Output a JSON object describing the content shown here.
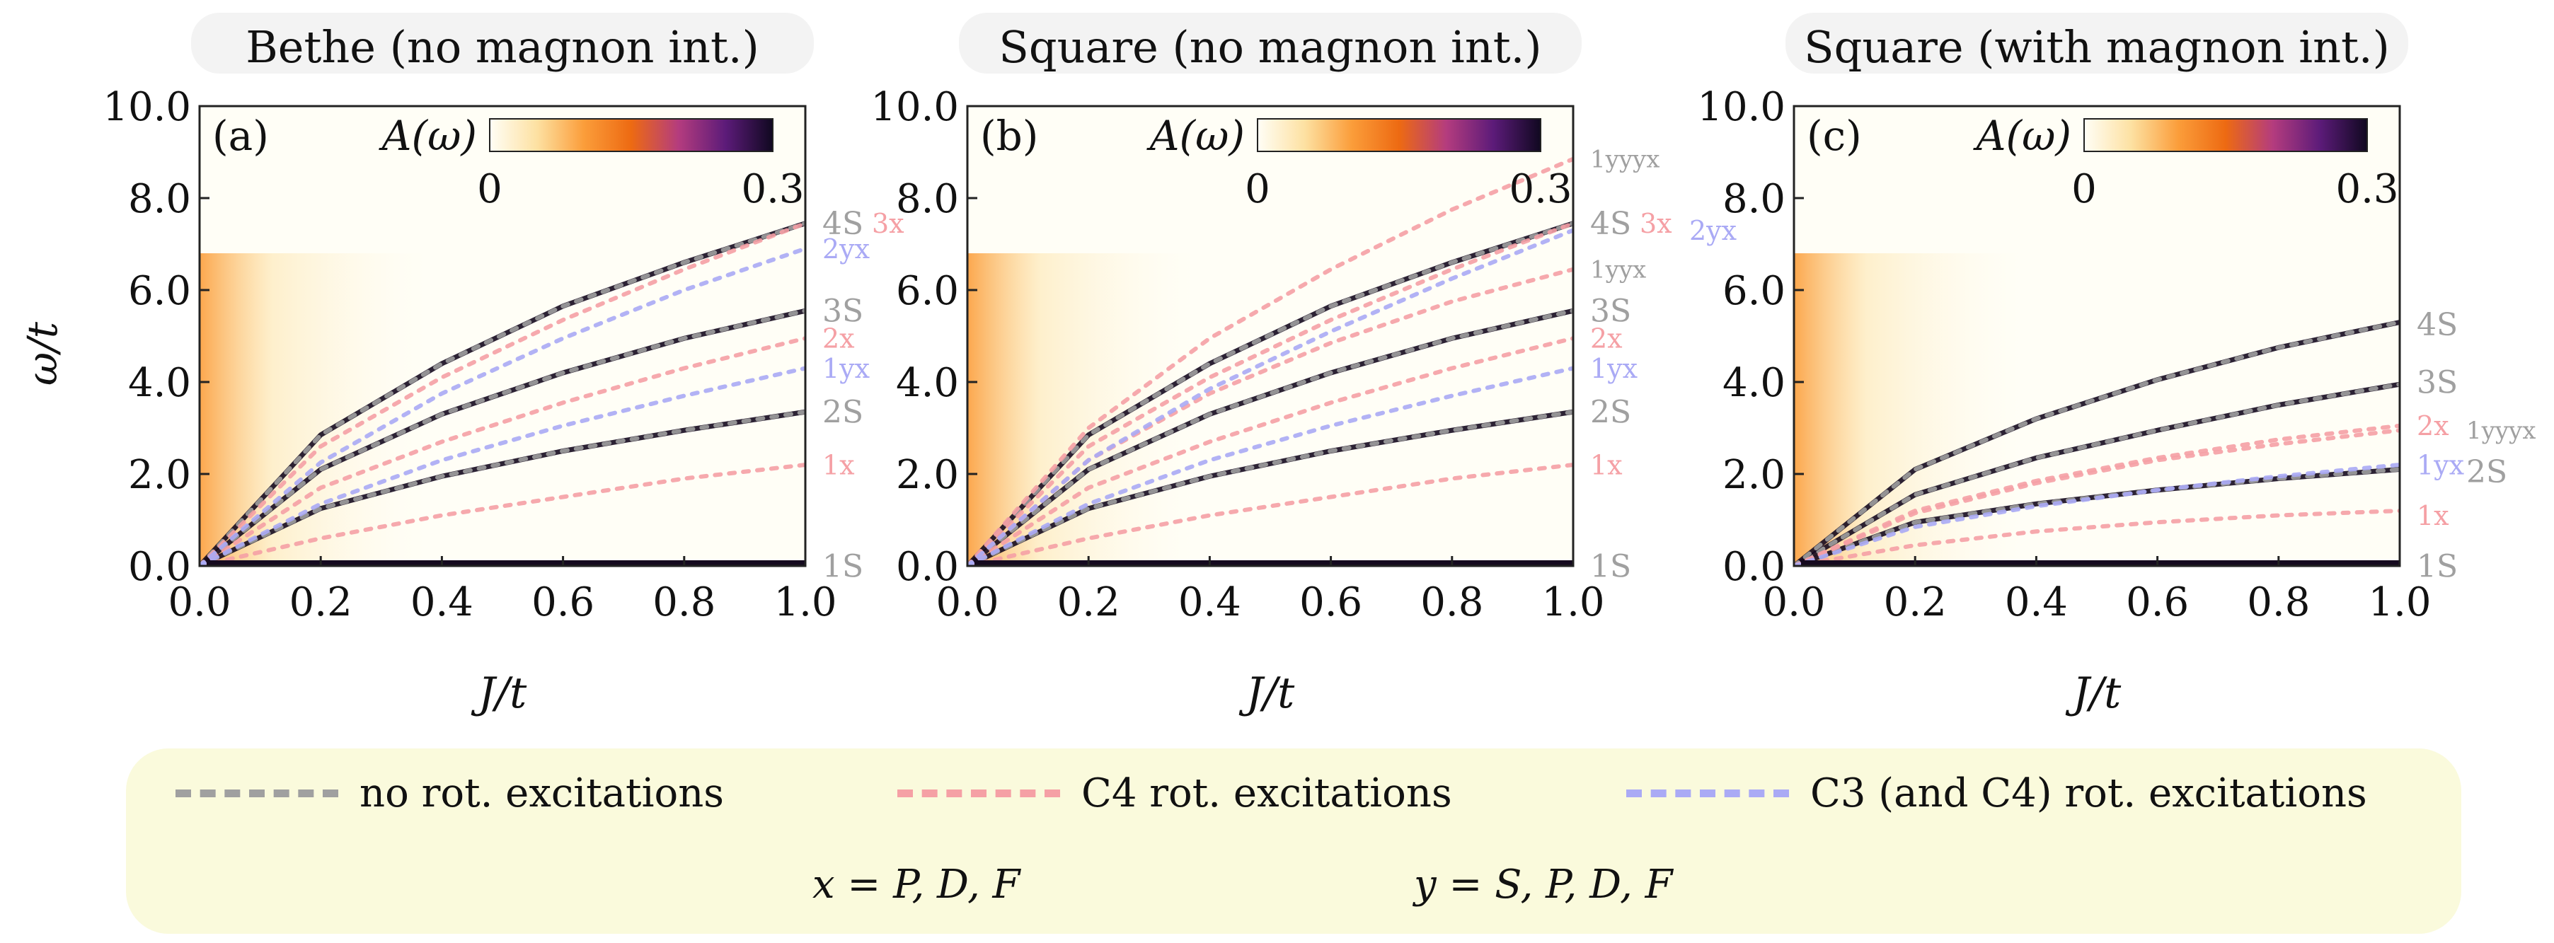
{
  "colors": {
    "no_rot": "#a0a0a0",
    "c4_rot": "#f5a0a5",
    "c3_rot": "#aaaaf5",
    "colormap": [
      "#fffef6",
      "#fde1a2",
      "#fb9d3a",
      "#ed6a12",
      "#b43c7e",
      "#5c1b79",
      "#100820"
    ]
  },
  "y_axis_label": "ω/t",
  "legend": {
    "items": [
      {
        "label": "no rot. excitations",
        "color": "#a0a0a0"
      },
      {
        "label": "C4 rot. excitations",
        "color": "#f5a0a5"
      },
      {
        "label": "C3 (and C4) rot. excitations",
        "color": "#aaaaf5"
      }
    ],
    "x_def": "x = P, D, F",
    "y_def": "y = S, P, D, F"
  },
  "chart_data": [
    {
      "type": "heatmap",
      "panel": "(a)",
      "title": "Bethe (no magnon int.)",
      "xlabel": "J/t",
      "ylabel": "ω/t",
      "xlim": [
        0.0,
        1.0
      ],
      "ylim": [
        0.0,
        10.0
      ],
      "x_ticks": [
        "0.0",
        "0.2",
        "0.4",
        "0.6",
        "0.8",
        "1.0"
      ],
      "y_ticks": [
        "0.0",
        "2.0",
        "4.0",
        "6.0",
        "8.0",
        "10.0"
      ],
      "colorbar": {
        "label": "A(ω)",
        "min": "0",
        "max": "0.3"
      },
      "labels": [
        {
          "text": "4S",
          "y": 7.45,
          "kind": "no_rot"
        },
        {
          "text": "3x",
          "y": 7.45,
          "kind": "c4_rot"
        },
        {
          "text": "2yx",
          "y": 6.9,
          "kind": "c3_rot"
        },
        {
          "text": "3S",
          "y": 5.55,
          "kind": "no_rot"
        },
        {
          "text": "2x",
          "y": 4.95,
          "kind": "c4_rot"
        },
        {
          "text": "1yx",
          "y": 4.3,
          "kind": "c3_rot"
        },
        {
          "text": "2S",
          "y": 3.35,
          "kind": "no_rot"
        },
        {
          "text": "1x",
          "y": 2.2,
          "kind": "c4_rot"
        },
        {
          "text": "1S",
          "y": 0.0,
          "kind": "no_rot"
        }
      ],
      "dashed_lines": [
        {
          "kind": "no_rot",
          "x": [
            0,
            0.2,
            0.4,
            0.6,
            0.8,
            1.0
          ],
          "y": [
            0.0,
            1.25,
            1.95,
            2.5,
            2.95,
            3.35
          ]
        },
        {
          "kind": "no_rot",
          "x": [
            0,
            0.2,
            0.4,
            0.6,
            0.8,
            1.0
          ],
          "y": [
            0.0,
            2.1,
            3.3,
            4.2,
            4.95,
            5.55
          ]
        },
        {
          "kind": "no_rot",
          "x": [
            0,
            0.2,
            0.4,
            0.6,
            0.8,
            1.0
          ],
          "y": [
            0.0,
            2.85,
            4.4,
            5.65,
            6.6,
            7.45
          ]
        },
        {
          "kind": "c4_rot",
          "x": [
            0,
            0.2,
            0.4,
            0.6,
            0.8,
            1.0
          ],
          "y": [
            0.0,
            0.6,
            1.1,
            1.5,
            1.9,
            2.2
          ]
        },
        {
          "kind": "c4_rot",
          "x": [
            0,
            0.2,
            0.4,
            0.6,
            0.8,
            1.0
          ],
          "y": [
            0.0,
            1.7,
            2.7,
            3.55,
            4.3,
            4.95
          ]
        },
        {
          "kind": "c4_rot",
          "x": [
            0,
            0.2,
            0.4,
            0.6,
            0.8,
            1.0
          ],
          "y": [
            0.0,
            2.6,
            4.1,
            5.35,
            6.45,
            7.45
          ]
        },
        {
          "kind": "c3_rot",
          "x": [
            0,
            0.2,
            0.4,
            0.6,
            0.8,
            1.0
          ],
          "y": [
            0.0,
            1.35,
            2.3,
            3.05,
            3.7,
            4.3
          ]
        },
        {
          "kind": "c3_rot",
          "x": [
            0,
            0.2,
            0.4,
            0.6,
            0.8,
            1.0
          ],
          "y": [
            0.0,
            2.25,
            3.75,
            4.95,
            6.0,
            6.9
          ]
        }
      ]
    },
    {
      "type": "heatmap",
      "panel": "(b)",
      "title": "Square (no magnon int.)",
      "xlabel": "J/t",
      "ylabel": "ω/t",
      "xlim": [
        0.0,
        1.0
      ],
      "ylim": [
        0.0,
        10.0
      ],
      "x_ticks": [
        "0.0",
        "0.2",
        "0.4",
        "0.6",
        "0.8",
        "1.0"
      ],
      "y_ticks": [
        "0.0",
        "2.0",
        "4.0",
        "6.0",
        "8.0",
        "10.0"
      ],
      "colorbar": {
        "label": "A(ω)",
        "min": "0",
        "max": "0.3"
      },
      "labels": [
        {
          "text": "1yyyx",
          "y": 8.85,
          "kind": "no_rot"
        },
        {
          "text": "4S",
          "y": 7.45,
          "kind": "no_rot"
        },
        {
          "text": "3x",
          "y": 7.45,
          "kind": "c4_rot"
        },
        {
          "text": "2yx",
          "y": 7.3,
          "kind": "c3_rot"
        },
        {
          "text": "1yyx",
          "y": 6.45,
          "kind": "no_rot"
        },
        {
          "text": "3S",
          "y": 5.55,
          "kind": "no_rot"
        },
        {
          "text": "2x",
          "y": 4.95,
          "kind": "c4_rot"
        },
        {
          "text": "1yx",
          "y": 4.3,
          "kind": "c3_rot"
        },
        {
          "text": "2S",
          "y": 3.35,
          "kind": "no_rot"
        },
        {
          "text": "1x",
          "y": 2.2,
          "kind": "c4_rot"
        },
        {
          "text": "1S",
          "y": 0.0,
          "kind": "no_rot"
        }
      ],
      "dashed_lines": [
        {
          "kind": "no_rot",
          "x": [
            0,
            0.2,
            0.4,
            0.6,
            0.8,
            1.0
          ],
          "y": [
            0.0,
            1.25,
            1.95,
            2.5,
            2.95,
            3.35
          ]
        },
        {
          "kind": "no_rot",
          "x": [
            0,
            0.2,
            0.4,
            0.6,
            0.8,
            1.0
          ],
          "y": [
            0.0,
            2.1,
            3.3,
            4.2,
            4.95,
            5.55
          ]
        },
        {
          "kind": "no_rot",
          "x": [
            0,
            0.2,
            0.4,
            0.6,
            0.8,
            1.0
          ],
          "y": [
            0.0,
            2.85,
            4.4,
            5.65,
            6.6,
            7.45
          ]
        },
        {
          "kind": "c4_rot",
          "x": [
            0,
            0.2,
            0.4,
            0.6,
            0.8,
            1.0
          ],
          "y": [
            0.0,
            0.6,
            1.1,
            1.5,
            1.9,
            2.2
          ]
        },
        {
          "kind": "c4_rot",
          "x": [
            0,
            0.2,
            0.4,
            0.6,
            0.8,
            1.0
          ],
          "y": [
            0.0,
            1.7,
            2.7,
            3.55,
            4.3,
            4.95
          ]
        },
        {
          "kind": "c4_rot",
          "x": [
            0,
            0.2,
            0.4,
            0.6,
            0.8,
            1.0
          ],
          "y": [
            0.0,
            2.6,
            4.1,
            5.35,
            6.45,
            7.45
          ]
        },
        {
          "kind": "c4_rot",
          "x": [
            0,
            0.2,
            0.4,
            0.6,
            0.8,
            1.0
          ],
          "y": [
            0.0,
            2.3,
            3.75,
            4.85,
            5.75,
            6.45
          ]
        },
        {
          "kind": "c4_rot",
          "x": [
            0,
            0.2,
            0.4,
            0.6,
            0.8,
            1.0
          ],
          "y": [
            0.0,
            3.0,
            4.95,
            6.45,
            7.75,
            8.85
          ]
        },
        {
          "kind": "c3_rot",
          "x": [
            0,
            0.2,
            0.4,
            0.6,
            0.8,
            1.0
          ],
          "y": [
            0.0,
            1.35,
            2.3,
            3.05,
            3.7,
            4.3
          ]
        },
        {
          "kind": "c3_rot",
          "x": [
            0,
            0.2,
            0.4,
            0.6,
            0.8,
            1.0
          ],
          "y": [
            0.0,
            2.3,
            3.85,
            5.1,
            6.25,
            7.3
          ]
        }
      ]
    },
    {
      "type": "heatmap",
      "panel": "(c)",
      "title": "Square (with magnon int.)",
      "xlabel": "J/t",
      "ylabel": "ω/t",
      "xlim": [
        0.0,
        1.0
      ],
      "ylim": [
        0.0,
        10.0
      ],
      "x_ticks": [
        "0.0",
        "0.2",
        "0.4",
        "0.6",
        "0.8",
        "1.0"
      ],
      "y_ticks": [
        "0.0",
        "2.0",
        "4.0",
        "6.0",
        "8.0",
        "10.0"
      ],
      "colorbar": {
        "label": "A(ω)",
        "min": "0",
        "max": "0.3"
      },
      "labels": [
        {
          "text": "4S",
          "y": 5.25,
          "kind": "no_rot"
        },
        {
          "text": "3S",
          "y": 4.0,
          "kind": "no_rot"
        },
        {
          "text": "2x",
          "y": 3.05,
          "kind": "c4_rot"
        },
        {
          "text": "1yyyx",
          "y": 2.95,
          "kind": "no_rot"
        },
        {
          "text": "1yx",
          "y": 2.2,
          "kind": "c3_rot"
        },
        {
          "text": "2S",
          "y": 2.05,
          "kind": "no_rot"
        },
        {
          "text": "1x",
          "y": 1.1,
          "kind": "c4_rot"
        },
        {
          "text": "1S",
          "y": 0.0,
          "kind": "no_rot"
        }
      ],
      "dashed_lines": [
        {
          "kind": "no_rot",
          "x": [
            0,
            0.2,
            0.4,
            0.6,
            0.8,
            1.0
          ],
          "y": [
            0.0,
            0.95,
            1.35,
            1.65,
            1.9,
            2.1
          ]
        },
        {
          "kind": "no_rot",
          "x": [
            0,
            0.2,
            0.4,
            0.6,
            0.8,
            1.0
          ],
          "y": [
            0.0,
            1.55,
            2.35,
            2.95,
            3.5,
            3.95
          ]
        },
        {
          "kind": "no_rot",
          "x": [
            0,
            0.2,
            0.4,
            0.6,
            0.8,
            1.0
          ],
          "y": [
            0.0,
            2.1,
            3.2,
            4.05,
            4.75,
            5.3
          ]
        },
        {
          "kind": "c4_rot",
          "x": [
            0,
            0.2,
            0.4,
            0.6,
            0.8,
            1.0
          ],
          "y": [
            0.0,
            0.45,
            0.75,
            0.95,
            1.1,
            1.2
          ]
        },
        {
          "kind": "c4_rot",
          "x": [
            0,
            0.2,
            0.4,
            0.6,
            0.8,
            1.0
          ],
          "y": [
            0.0,
            1.2,
            1.85,
            2.35,
            2.75,
            3.05
          ]
        },
        {
          "kind": "c4_rot",
          "x": [
            0,
            0.2,
            0.4,
            0.6,
            0.8,
            1.0
          ],
          "y": [
            0.0,
            1.15,
            1.8,
            2.3,
            2.65,
            2.95
          ]
        },
        {
          "kind": "c3_rot",
          "x": [
            0,
            0.2,
            0.4,
            0.6,
            0.8,
            1.0
          ],
          "y": [
            0.0,
            0.85,
            1.3,
            1.65,
            1.95,
            2.2
          ]
        }
      ]
    }
  ]
}
